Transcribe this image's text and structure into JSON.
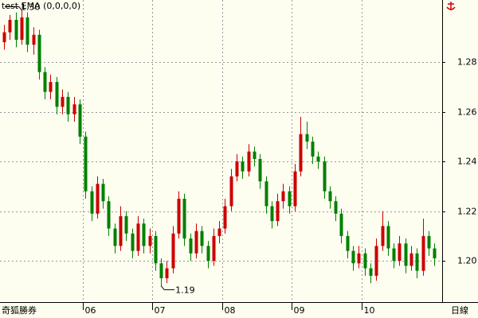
{
  "chart_data": {
    "type": "candlestick",
    "title": "test EMA (0,0,0,0)",
    "brand": "奇狐勝券",
    "period": "日線",
    "up_color": "#cc0000",
    "down_color": "#008000",
    "grid": true,
    "open": [
      1.288,
      1.292,
      1.297,
      1.289,
      1.298,
      1.287,
      1.291,
      1.276,
      1.268,
      1.272,
      1.262,
      1.266,
      1.259,
      1.263,
      1.25,
      1.228,
      1.219,
      1.231,
      1.224,
      1.213,
      1.206,
      1.218,
      1.211,
      1.204,
      1.215,
      1.206,
      1.21,
      1.199,
      1.193,
      1.197,
      1.211,
      1.225,
      1.209,
      1.203,
      1.212,
      1.206,
      1.2,
      1.21,
      1.213,
      1.222,
      1.234,
      1.24,
      1.236,
      1.244,
      1.241,
      1.232,
      1.222,
      1.216,
      1.224,
      1.228,
      1.222,
      1.236,
      1.251,
      1.248,
      1.242,
      1.24,
      1.228,
      1.224,
      1.219,
      1.21,
      1.204,
      1.199,
      1.203,
      1.197,
      1.194,
      1.206,
      1.214,
      1.205,
      1.2,
      1.207,
      1.198,
      1.203,
      1.196,
      1.21,
      1.205
    ],
    "high": [
      1.295,
      1.299,
      1.3,
      1.301,
      1.3,
      1.294,
      1.293,
      1.278,
      1.275,
      1.274,
      1.269,
      1.268,
      1.266,
      1.265,
      1.252,
      1.23,
      1.234,
      1.233,
      1.226,
      1.215,
      1.222,
      1.22,
      1.213,
      1.218,
      1.217,
      1.213,
      1.212,
      1.201,
      1.2,
      1.214,
      1.228,
      1.227,
      1.211,
      1.215,
      1.214,
      1.208,
      1.213,
      1.216,
      1.225,
      1.237,
      1.243,
      1.242,
      1.247,
      1.246,
      1.243,
      1.234,
      1.224,
      1.227,
      1.231,
      1.23,
      1.239,
      1.258,
      1.256,
      1.25,
      1.244,
      1.242,
      1.23,
      1.226,
      1.221,
      1.212,
      1.206,
      1.206,
      1.205,
      1.199,
      1.209,
      1.22,
      1.216,
      1.207,
      1.21,
      1.209,
      1.206,
      1.205,
      1.217,
      1.212,
      1.207
    ],
    "low": [
      1.285,
      1.289,
      1.286,
      1.287,
      1.284,
      1.283,
      1.273,
      1.265,
      1.265,
      1.259,
      1.259,
      1.256,
      1.256,
      1.247,
      1.225,
      1.216,
      1.217,
      1.221,
      1.21,
      1.203,
      1.204,
      1.208,
      1.201,
      1.202,
      1.203,
      1.203,
      1.196,
      1.19,
      1.191,
      1.195,
      1.209,
      1.206,
      1.2,
      1.201,
      1.203,
      1.197,
      1.198,
      1.207,
      1.211,
      1.22,
      1.232,
      1.233,
      1.234,
      1.238,
      1.229,
      1.219,
      1.213,
      1.214,
      1.221,
      1.219,
      1.22,
      1.234,
      1.245,
      1.239,
      1.237,
      1.225,
      1.221,
      1.216,
      1.207,
      1.201,
      1.196,
      1.197,
      1.194,
      1.191,
      1.192,
      1.204,
      1.202,
      1.197,
      1.198,
      1.195,
      1.196,
      1.193,
      1.194,
      1.202,
      1.198
    ],
    "close": [
      1.292,
      1.297,
      1.289,
      1.298,
      1.287,
      1.291,
      1.276,
      1.268,
      1.272,
      1.262,
      1.266,
      1.259,
      1.263,
      1.25,
      1.228,
      1.219,
      1.231,
      1.224,
      1.213,
      1.206,
      1.218,
      1.211,
      1.204,
      1.215,
      1.206,
      1.21,
      1.199,
      1.193,
      1.197,
      1.211,
      1.225,
      1.209,
      1.203,
      1.212,
      1.206,
      1.2,
      1.21,
      1.213,
      1.222,
      1.234,
      1.24,
      1.236,
      1.244,
      1.241,
      1.232,
      1.222,
      1.216,
      1.224,
      1.228,
      1.222,
      1.236,
      1.251,
      1.248,
      1.242,
      1.24,
      1.228,
      1.224,
      1.219,
      1.21,
      1.204,
      1.199,
      1.203,
      1.197,
      1.194,
      1.206,
      1.214,
      1.205,
      1.2,
      1.207,
      1.198,
      1.203,
      1.196,
      1.21,
      1.205,
      1.201
    ],
    "high_annotation": "1.30",
    "low_annotation": "1.19",
    "ylim": [
      1.1834,
      1.305
    ],
    "yticks": [
      {
        "value": 1.2,
        "label": "1.20"
      },
      1.22,
      1.24,
      {
        "value": 1.26,
        "label": "1.26",
        "color": "#cc0000"
      },
      {
        "value": 1.28,
        "label": "1.28"
      }
    ],
    "xticks": [
      {
        "value": 14,
        "label": "06"
      },
      {
        "value": 26,
        "label": "07"
      },
      {
        "value": 38,
        "label": "08"
      },
      {
        "value": 50,
        "label": "09"
      },
      {
        "value": 62,
        "label": "10"
      }
    ]
  }
}
